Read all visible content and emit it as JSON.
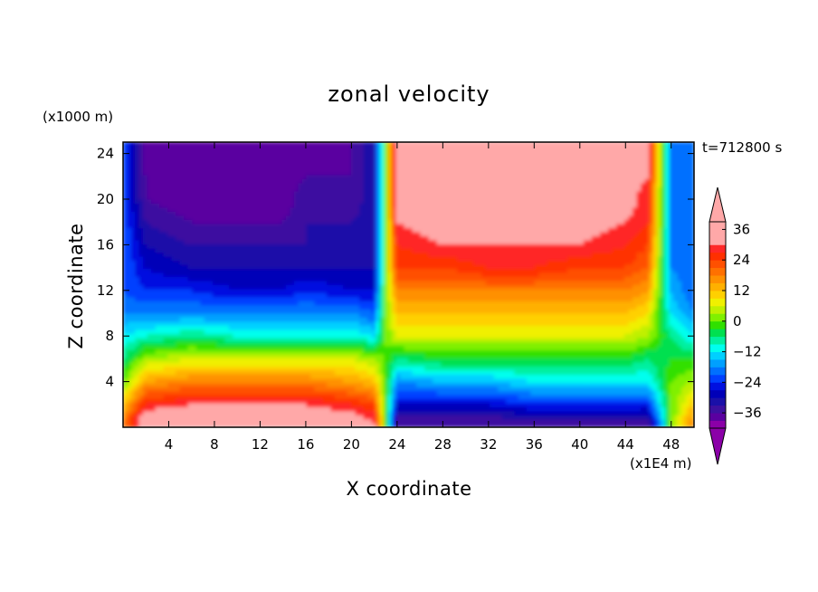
{
  "chart_data": {
    "type": "heatmap",
    "title": "zonal velocity",
    "xlabel": "X coordinate",
    "ylabel": "Z coordinate",
    "x_unit": "(x1E4 m)",
    "y_unit": "(x1000 m)",
    "time_label": "t=712800 s",
    "xlim": [
      0,
      50
    ],
    "ylim": [
      0,
      25
    ],
    "x_ticks": [
      4,
      8,
      12,
      16,
      20,
      24,
      28,
      32,
      36,
      40,
      44,
      48
    ],
    "y_ticks": [
      4,
      8,
      12,
      16,
      20,
      24
    ],
    "colorbar": {
      "levels": [
        -42,
        -39,
        -36,
        -33,
        -30,
        -27,
        -24,
        -21,
        -18,
        -15,
        -12,
        -9,
        -6,
        -3,
        0,
        3,
        6,
        9,
        12,
        15,
        18,
        21,
        24,
        27,
        30,
        33,
        36,
        39
      ],
      "tick_labels": [
        "36",
        "24",
        "12",
        "0",
        "−12",
        "−24",
        "−36"
      ],
      "tick_values": [
        36,
        24,
        12,
        0,
        -12,
        -24,
        -36
      ],
      "extend": "both",
      "colors": [
        "#8b00a8",
        "#5a00a0",
        "#3c10a0",
        "#1a10a8",
        "#0000b8",
        "#0010e0",
        "#0040ff",
        "#0070ff",
        "#00a0ff",
        "#00d0ff",
        "#00ffee",
        "#00f0a0",
        "#00e050",
        "#30e000",
        "#80f000",
        "#c0f000",
        "#f0f000",
        "#ffd000",
        "#ffb000",
        "#ff9000",
        "#ff7000",
        "#ff5000",
        "#ff3000",
        "#ff2828",
        "#ffa8a8"
      ],
      "over_color": "#ffa8a8",
      "under_color": "#8b00a8"
    },
    "field_description": "zonal velocity u(x,z): negative (westward) in the left half x<23 aloft, positive (eastward) in the right half aloft; near the surface the sign reverses; sharp transitions near x≈23 and x≈48",
    "grid_samples": {
      "x": [
        0,
        2,
        6,
        10,
        14,
        16,
        20,
        22,
        23,
        24,
        28,
        32,
        36,
        40,
        44,
        46,
        48,
        50
      ],
      "z": [
        0.5,
        2,
        4,
        6,
        8,
        10,
        12,
        14,
        16,
        18,
        20,
        22,
        24.5
      ],
      "u": [
        [
          18,
          36,
          38,
          38,
          36,
          36,
          34,
          30,
          0,
          -36,
          -36,
          -36,
          -34,
          -34,
          -34,
          -36,
          0,
          18
        ],
        [
          12,
          27,
          30,
          30,
          30,
          30,
          27,
          24,
          0,
          -27,
          -27,
          -27,
          -24,
          -24,
          -24,
          -24,
          0,
          12
        ],
        [
          0,
          15,
          18,
          18,
          18,
          18,
          15,
          12,
          0,
          -18,
          -15,
          -15,
          -12,
          -12,
          -12,
          -12,
          0,
          3
        ],
        [
          -6,
          3,
          6,
          6,
          6,
          6,
          6,
          3,
          0,
          -6,
          -3,
          -3,
          -3,
          -3,
          -3,
          -6,
          -3,
          -3
        ],
        [
          -12,
          -9,
          -6,
          -9,
          -9,
          -9,
          -9,
          -12,
          0,
          6,
          6,
          6,
          6,
          6,
          6,
          3,
          -6,
          -12
        ],
        [
          -18,
          -18,
          -18,
          -18,
          -18,
          -18,
          -18,
          -21,
          0,
          12,
          12,
          12,
          12,
          12,
          12,
          9,
          -12,
          -18
        ],
        [
          -21,
          -24,
          -24,
          -27,
          -27,
          -24,
          -27,
          -27,
          0,
          18,
          18,
          18,
          18,
          18,
          18,
          15,
          -15,
          -21
        ],
        [
          -21,
          -27,
          -30,
          -30,
          -30,
          -30,
          -30,
          -30,
          0,
          24,
          24,
          27,
          27,
          24,
          24,
          21,
          -18,
          -21
        ],
        [
          -21,
          -30,
          -33,
          -33,
          -33,
          -33,
          -33,
          -30,
          0,
          27,
          30,
          30,
          30,
          30,
          27,
          24,
          -18,
          -21
        ],
        [
          -21,
          -33,
          -36,
          -36,
          -36,
          -33,
          -33,
          -30,
          0,
          30,
          33,
          33,
          33,
          33,
          30,
          27,
          -18,
          -21
        ],
        [
          -21,
          -36,
          -39,
          -39,
          -39,
          -33,
          -36,
          -30,
          0,
          33,
          33,
          36,
          36,
          33,
          33,
          27,
          -18,
          -21
        ],
        [
          -21,
          -36,
          -39,
          -39,
          -39,
          -36,
          -36,
          -30,
          0,
          33,
          36,
          36,
          36,
          36,
          33,
          30,
          -18,
          -21
        ],
        [
          -21,
          -39,
          -39,
          -39,
          -39,
          -39,
          -36,
          -30,
          0,
          36,
          36,
          40,
          36,
          40,
          36,
          30,
          -18,
          -21
        ]
      ]
    }
  }
}
